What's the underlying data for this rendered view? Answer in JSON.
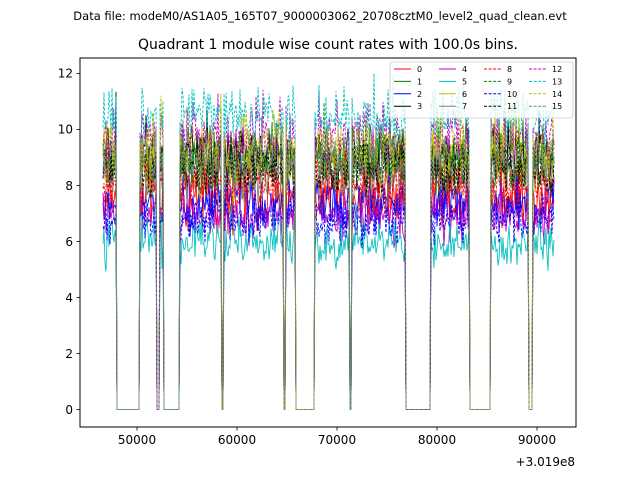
{
  "figure": {
    "suptitle": "Data file: modeM0/AS1A05_165T07_9000003062_20708cztM0_level2_quad_clean.evt"
  },
  "chart_data": {
    "type": "line",
    "title": "Quadrant 1 module wise count rates with 100.0s bins.",
    "xlabel": "",
    "ylabel": "",
    "x_offset_label": "+3.019e8",
    "xlim": [
      44300,
      93900
    ],
    "ylim": [
      -0.62,
      12.55
    ],
    "x_ticks": [
      50000,
      60000,
      70000,
      80000,
      90000
    ],
    "x_tick_labels": [
      "50000",
      "60000",
      "70000",
      "80000",
      "90000"
    ],
    "y_ticks": [
      0,
      2,
      4,
      6,
      8,
      10,
      12
    ],
    "y_tick_labels": [
      "0",
      "2",
      "4",
      "6",
      "8",
      "10",
      "12"
    ],
    "grid": false,
    "legend_location": "top-right",
    "legend_columns": 4,
    "bin_seconds": 100,
    "data_start": 46600,
    "data_end": 91700,
    "on_segments": [
      [
        46600,
        47900
      ],
      [
        50300,
        51900
      ],
      [
        52300,
        52600
      ],
      [
        54300,
        58400
      ],
      [
        58700,
        64600
      ],
      [
        64900,
        65800
      ],
      [
        67800,
        71200
      ],
      [
        71500,
        76800
      ],
      [
        79400,
        83200
      ],
      [
        85400,
        89100
      ],
      [
        89600,
        91700
      ]
    ],
    "series": [
      {
        "name": "0",
        "color": "#ff0000",
        "style": "solid",
        "mean": 7.55,
        "noise": 0.6
      },
      {
        "name": "1",
        "color": "#008000",
        "style": "solid",
        "mean": 9.1,
        "noise": 0.6
      },
      {
        "name": "2",
        "color": "#0000ff",
        "style": "solid",
        "mean": 7.3,
        "noise": 0.55
      },
      {
        "name": "3",
        "color": "#000000",
        "style": "solid",
        "mean": 9.05,
        "noise": 0.6
      },
      {
        "name": "4",
        "color": "#bf00bf",
        "style": "solid",
        "mean": 6.85,
        "noise": 0.5
      },
      {
        "name": "5",
        "color": "#00bfbf",
        "style": "solid",
        "mean": 5.95,
        "noise": 0.5
      },
      {
        "name": "6",
        "color": "#bfbf00",
        "style": "solid",
        "mean": 8.65,
        "noise": 0.6
      },
      {
        "name": "7",
        "color": "#808080",
        "style": "solid",
        "mean": 8.35,
        "noise": 0.6
      },
      {
        "name": "8",
        "color": "#ff0000",
        "style": "dashed",
        "mean": 8.05,
        "noise": 0.6
      },
      {
        "name": "9",
        "color": "#008000",
        "style": "dashed",
        "mean": 8.75,
        "noise": 0.6
      },
      {
        "name": "10",
        "color": "#0000ff",
        "style": "dashed",
        "mean": 6.75,
        "noise": 0.5
      },
      {
        "name": "11",
        "color": "#000000",
        "style": "dashed",
        "mean": 8.55,
        "noise": 0.6
      },
      {
        "name": "12",
        "color": "#bf00bf",
        "style": "dashed",
        "mean": 9.75,
        "noise": 0.6
      },
      {
        "name": "13",
        "color": "#00bfbf",
        "style": "dashed",
        "mean": 10.45,
        "noise": 0.6
      },
      {
        "name": "14",
        "color": "#bfbf00",
        "style": "dashed",
        "mean": 9.4,
        "noise": 0.6
      },
      {
        "name": "15",
        "color": "#808080",
        "style": "dashed",
        "mean": 8.95,
        "noise": 0.6
      }
    ]
  }
}
